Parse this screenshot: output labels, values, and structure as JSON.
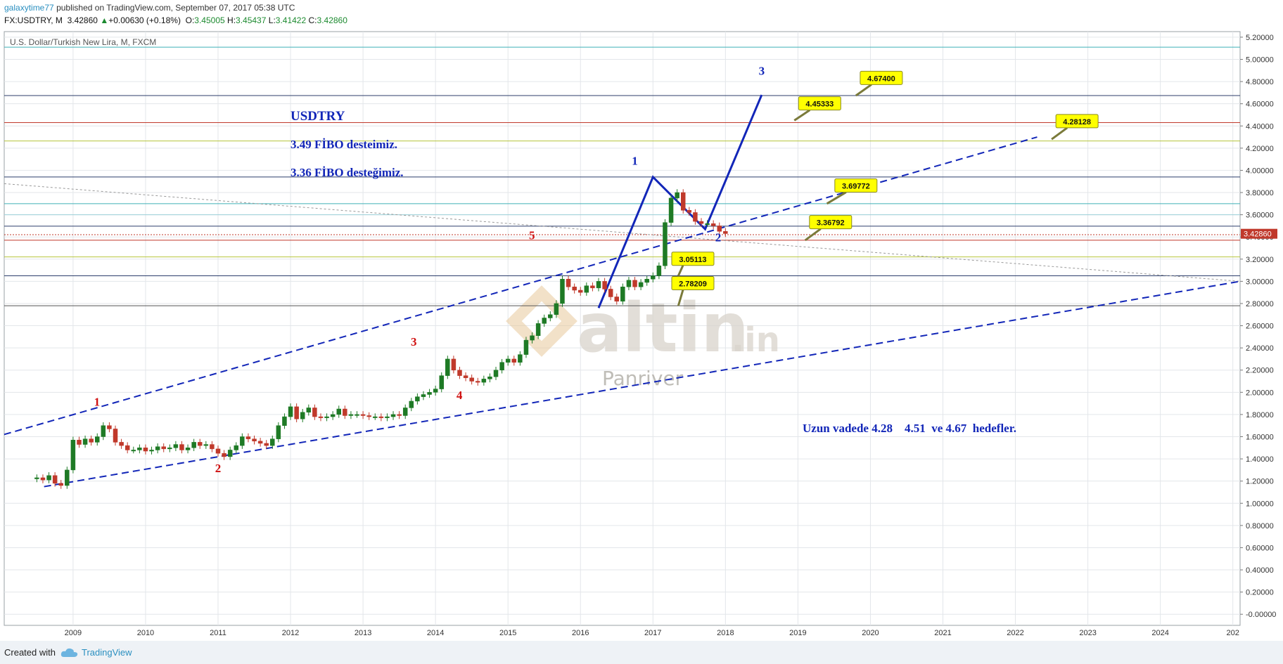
{
  "header": {
    "author": "galaxytime77",
    "published": "published on TradingView.com, September 07, 2017 05:38 UTC",
    "symbol": "FX:USDTRY, M",
    "last": "3.42860",
    "arrow": "▲",
    "change": "+0.00630 (+0.18%)",
    "o_label": "O:",
    "o_val": "3.45005",
    "h_label": "H:",
    "h_val": "3.45437",
    "l_label": "L:",
    "l_val": "3.41422",
    "c_label": "C:",
    "c_val": "3.42860"
  },
  "footer": {
    "created_with": "Created with",
    "brand": "TradingView"
  },
  "watermark": {
    "brand": "altin",
    "suffix": ".in",
    "sub": "Panriver"
  },
  "colors": {
    "up": "#1e7a25",
    "down": "#c0392b",
    "channel": "#1226b8",
    "last_badge": "#c0392b",
    "callout": "#ffff00"
  },
  "chart_data": {
    "type": "candlestick",
    "title": "U.S. Dollar/Turkish New Lira, M, FXCM",
    "x_ticks": [
      "2009",
      "2010",
      "2011",
      "2012",
      "2013",
      "2014",
      "2015",
      "2016",
      "2017",
      "2018",
      "2019",
      "2020",
      "2021",
      "2022",
      "2023",
      "2024",
      "202"
    ],
    "y_ticks": [
      "5.20000",
      "5.00000",
      "4.80000",
      "4.60000",
      "4.40000",
      "4.20000",
      "4.00000",
      "3.80000",
      "3.60000",
      "3.40000",
      "3.20000",
      "3.00000",
      "2.80000",
      "2.60000",
      "2.40000",
      "2.20000",
      "2.00000",
      "1.80000",
      "1.60000",
      "1.40000",
      "1.20000",
      "1.00000",
      "0.80000",
      "0.60000",
      "0.40000",
      "0.20000",
      "-0.00000"
    ],
    "y_range": [
      -0.1,
      5.25
    ],
    "x_range": [
      2008.05,
      2025.1
    ],
    "last_price": "3.42860",
    "candles_path": [
      1.22,
      1.23,
      1.21,
      1.25,
      1.18,
      1.16,
      1.3,
      1.57,
      1.53,
      1.58,
      1.55,
      1.6,
      1.7,
      1.67,
      1.55,
      1.52,
      1.48,
      1.48,
      1.5,
      1.47,
      1.48,
      1.51,
      1.49,
      1.5,
      1.53,
      1.48,
      1.5,
      1.55,
      1.52,
      1.53,
      1.49,
      1.45,
      1.42,
      1.48,
      1.52,
      1.6,
      1.58,
      1.56,
      1.54,
      1.52,
      1.58,
      1.7,
      1.78,
      1.87,
      1.76,
      1.82,
      1.86,
      1.78,
      1.77,
      1.78,
      1.8,
      1.85,
      1.79,
      1.8,
      1.8,
      1.79,
      1.78,
      1.78,
      1.77,
      1.78,
      1.8,
      1.79,
      1.86,
      1.92,
      1.96,
      1.98,
      2.0,
      2.03,
      2.15,
      2.3,
      2.2,
      2.15,
      2.13,
      2.1,
      2.09,
      2.12,
      2.14,
      2.2,
      2.27,
      2.3,
      2.27,
      2.34,
      2.47,
      2.51,
      2.62,
      2.67,
      2.7,
      2.8,
      3.02,
      2.95,
      2.92,
      2.9,
      2.96,
      2.94,
      3.0,
      2.93,
      2.86,
      2.82,
      2.95,
      3.01,
      2.95,
      2.99,
      3.02,
      3.05,
      3.14,
      3.53,
      3.75,
      3.8,
      3.64,
      3.62,
      3.54,
      3.52,
      3.52,
      3.5,
      3.45,
      3.43
    ],
    "horizontal_lines": [
      5.11,
      4.674,
      4.43,
      4.265,
      3.94,
      3.7,
      3.6,
      3.497,
      3.42,
      3.37,
      3.22,
      3.05,
      2.78
    ],
    "channel": {
      "upper": [
        [
          2008.05,
          1.62
        ],
        [
          2022.3,
          4.3
        ]
      ],
      "lower": [
        [
          2008.6,
          1.15
        ],
        [
          2025.1,
          3.0
        ]
      ],
      "dotted_trend": [
        [
          2008.05,
          3.88
        ],
        [
          2025.1,
          3.0
        ]
      ]
    },
    "impulse": [
      [
        2016.25,
        2.76
      ],
      [
        2017.0,
        3.94
      ],
      [
        2017.72,
        3.47
      ],
      [
        2018.5,
        4.68
      ]
    ],
    "wave_labels": [
      {
        "text": "1",
        "x": 2009.33,
        "y": 1.88,
        "color": "red"
      },
      {
        "text": "2",
        "x": 2011.0,
        "y": 1.28,
        "color": "red"
      },
      {
        "text": "3",
        "x": 2013.7,
        "y": 2.42,
        "color": "red"
      },
      {
        "text": "4",
        "x": 2014.33,
        "y": 1.94,
        "color": "red"
      },
      {
        "text": "5",
        "x": 2015.33,
        "y": 3.38,
        "color": "red"
      },
      {
        "text": "1",
        "x": 2016.75,
        "y": 4.05,
        "color": "blue"
      },
      {
        "text": "2",
        "x": 2017.9,
        "y": 3.36,
        "color": "blue"
      },
      {
        "text": "3",
        "x": 2018.5,
        "y": 4.86,
        "color": "blue"
      }
    ],
    "callouts": [
      {
        "text": "3.05113",
        "x": 2017.55,
        "y": 3.2,
        "ax": 2017.35,
        "ay": 3.05
      },
      {
        "text": "2.78209",
        "x": 2017.55,
        "y": 2.98,
        "ax": 2017.35,
        "ay": 2.78
      },
      {
        "text": "3.36792",
        "x": 2019.45,
        "y": 3.53,
        "ax": 2019.1,
        "ay": 3.37
      },
      {
        "text": "3.69772",
        "x": 2019.8,
        "y": 3.86,
        "ax": 2019.4,
        "ay": 3.7
      },
      {
        "text": "4.45333",
        "x": 2019.3,
        "y": 4.6,
        "ax": 2018.95,
        "ay": 4.45
      },
      {
        "text": "4.67400",
        "x": 2020.15,
        "y": 4.83,
        "ax": 2019.8,
        "ay": 4.674
      },
      {
        "text": "4.28128",
        "x": 2022.85,
        "y": 4.44,
        "ax": 2022.5,
        "ay": 4.28
      }
    ],
    "annotations": [
      {
        "text": "USDTRY"
      },
      {
        "text": "3.49 FİBO desteimiz."
      },
      {
        "text": "3.36 FİBO desteğimiz."
      },
      {
        "text": "Uzun vadede 4.28    4.51  ve 4.67  hedefler."
      }
    ]
  }
}
